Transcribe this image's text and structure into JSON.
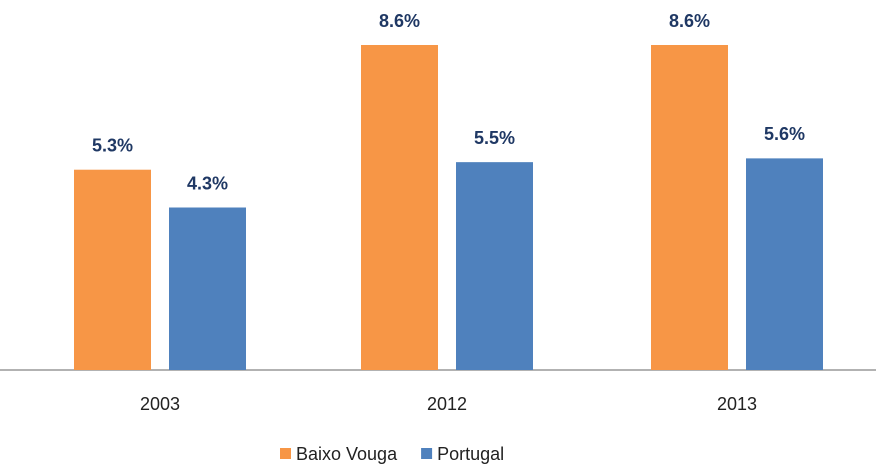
{
  "chart_data": {
    "type": "bar",
    "categories": [
      "2003",
      "2012",
      "2013"
    ],
    "series": [
      {
        "name": "Baixo Vouga",
        "color": "#f79646",
        "values": [
          5.3,
          8.6,
          8.6
        ],
        "value_labels": [
          "5.3%",
          "8.6%",
          "8.6%"
        ]
      },
      {
        "name": "Portugal",
        "color": "#4f81bd",
        "values": [
          4.3,
          5.5,
          5.6
        ],
        "value_labels": [
          "4.3%",
          "5.5%",
          "5.6%"
        ]
      }
    ]
  }
}
